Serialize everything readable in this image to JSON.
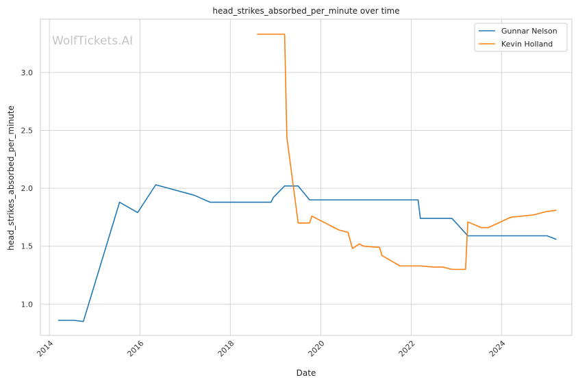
{
  "chart_data": {
    "type": "line",
    "title": "head_strikes_absorbed_per_minute over time",
    "xlabel": "Date",
    "ylabel": "head_strikes_absorbed_per_minute",
    "watermark": "WolfTickets.AI",
    "xlim": [
      2013.8,
      2025.55
    ],
    "ylim": [
      0.73,
      3.46
    ],
    "x_ticks": [
      2014,
      2016,
      2018,
      2020,
      2022,
      2024
    ],
    "x_tick_labels": [
      "2014",
      "2016",
      "2018",
      "2020",
      "2022",
      "2024"
    ],
    "y_ticks": [
      1.0,
      1.5,
      2.0,
      2.5,
      3.0
    ],
    "y_tick_labels": [
      "1.0",
      "1.5",
      "2.0",
      "2.5",
      "3.0"
    ],
    "grid": true,
    "legend_position": "top-right",
    "series": [
      {
        "name": "Gunnar Nelson",
        "color": "#1f77b4",
        "x": [
          2014.2,
          2014.55,
          2014.75,
          2015.55,
          2015.95,
          2016.35,
          2017.2,
          2017.55,
          2018.9,
          2018.95,
          2019.2,
          2019.5,
          2019.75,
          2022.15,
          2022.2,
          2022.9,
          2023.25,
          2025.0,
          2025.2
        ],
        "y": [
          0.86,
          0.86,
          0.85,
          1.88,
          1.79,
          2.03,
          1.94,
          1.88,
          1.88,
          1.92,
          2.02,
          2.02,
          1.9,
          1.9,
          1.74,
          1.74,
          1.59,
          1.59,
          1.56
        ]
      },
      {
        "name": "Kevin Holland",
        "color": "#ff7f0e",
        "x": [
          2018.6,
          2019.2,
          2019.25,
          2019.5,
          2019.75,
          2019.8,
          2020.4,
          2020.6,
          2020.7,
          2020.85,
          2020.95,
          2021.3,
          2021.35,
          2021.75,
          2022.2,
          2022.5,
          2022.7,
          2022.9,
          2023.2,
          2023.25,
          2023.55,
          2023.7,
          2024.2,
          2024.7,
          2025.0,
          2025.2
        ],
        "y": [
          3.33,
          3.33,
          2.44,
          1.7,
          1.7,
          1.76,
          1.64,
          1.62,
          1.48,
          1.52,
          1.5,
          1.49,
          1.42,
          1.33,
          1.33,
          1.32,
          1.32,
          1.3,
          1.3,
          1.71,
          1.66,
          1.66,
          1.75,
          1.77,
          1.8,
          1.81
        ]
      }
    ]
  }
}
